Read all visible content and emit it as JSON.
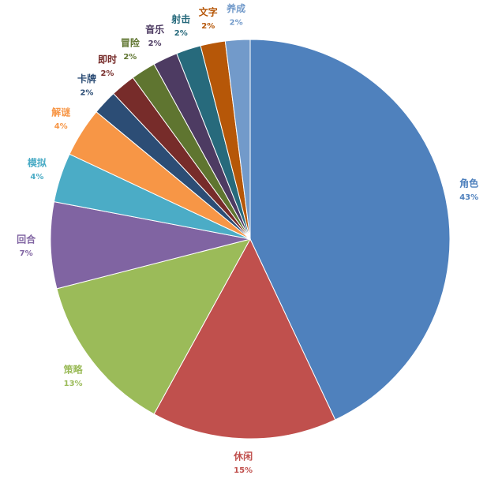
{
  "chart_data": {
    "type": "pie",
    "categories": [
      "角色",
      "休闲",
      "策略",
      "回合",
      "模拟",
      "解谜",
      "卡牌",
      "即时",
      "冒险",
      "音乐",
      "射击",
      "文字",
      "养成"
    ],
    "values": [
      43,
      15,
      13,
      7,
      4,
      4,
      2,
      2,
      2,
      2,
      2,
      2,
      2
    ],
    "value_labels": [
      "43%",
      "15%",
      "13%",
      "7%",
      "4%",
      "4%",
      "2%",
      "2%",
      "2%",
      "2%",
      "2%",
      "2%",
      "2%"
    ],
    "colors": [
      "#4f81bd",
      "#c0504d",
      "#9bbb59",
      "#8064a2",
      "#4bacc6",
      "#f79646",
      "#2c4d75",
      "#772c2a",
      "#5f7530",
      "#4d3b62",
      "#276a7c",
      "#b65708",
      "#729aca"
    ]
  }
}
